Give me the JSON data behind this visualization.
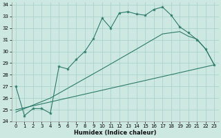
{
  "xlabel": "Humidex (Indice chaleur)",
  "bg_color": "#cce8e0",
  "grid_color": "#aad4ca",
  "line_color": "#2d7a6a",
  "xlim": [
    -0.5,
    23.5
  ],
  "ylim": [
    24,
    34.2
  ],
  "xticks": [
    0,
    1,
    2,
    3,
    4,
    5,
    6,
    7,
    8,
    9,
    10,
    11,
    12,
    13,
    14,
    15,
    16,
    17,
    18,
    19,
    20,
    21,
    22,
    23
  ],
  "yticks": [
    24,
    25,
    26,
    27,
    28,
    29,
    30,
    31,
    32,
    33,
    34
  ],
  "line1_x": [
    0,
    1,
    2,
    3,
    4,
    5,
    6,
    7,
    8,
    9,
    10,
    11,
    12,
    13,
    14,
    15,
    16,
    17,
    18,
    19,
    20,
    21,
    22,
    23
  ],
  "line1_y": [
    27.0,
    24.5,
    25.1,
    25.1,
    24.7,
    28.7,
    28.5,
    29.3,
    30.0,
    31.1,
    32.85,
    32.0,
    33.3,
    33.4,
    33.2,
    33.1,
    33.6,
    33.8,
    33.1,
    32.1,
    31.6,
    31.0,
    30.2,
    28.85
  ],
  "line2_x": [
    0,
    23
  ],
  "line2_y": [
    25.0,
    28.85
  ],
  "line3_x": [
    0,
    4,
    10,
    14,
    17,
    19,
    20,
    21,
    22,
    23
  ],
  "line3_y": [
    24.8,
    26.0,
    28.5,
    30.2,
    31.5,
    31.7,
    31.3,
    31.05,
    30.2,
    28.85
  ]
}
